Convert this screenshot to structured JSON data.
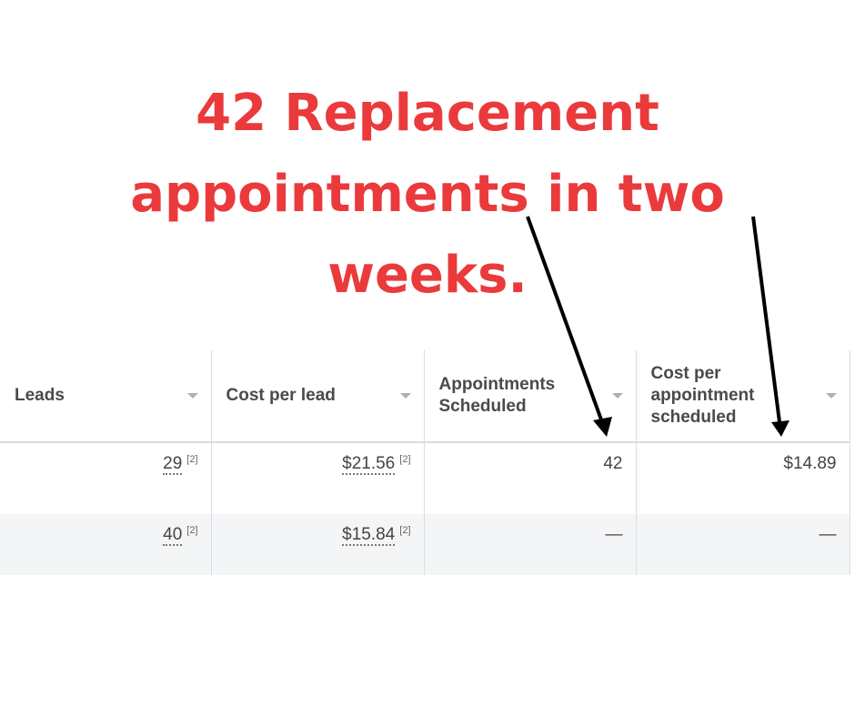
{
  "headline": {
    "lines": [
      "42 Replacement",
      "appointments in two",
      "weeks."
    ],
    "color": "#ea3a3c"
  },
  "table": {
    "columns": [
      {
        "label": "Leads",
        "sort_icon": "caret-down-icon"
      },
      {
        "label": "Cost per lead",
        "sort_icon": "caret-down-icon"
      },
      {
        "label": "Appointments Scheduled",
        "sort_icon": "caret-down-icon"
      },
      {
        "label": "Cost per appointment scheduled",
        "sort_icon": "caret-down-icon"
      }
    ],
    "rows": [
      {
        "leads": "29",
        "leads_note": "[2]",
        "cpl": "$21.56",
        "cpl_note": "[2]",
        "appts": "42",
        "cpa": "$14.89"
      },
      {
        "leads": "40",
        "leads_note": "[2]",
        "cpl": "$15.84",
        "cpl_note": "[2]",
        "appts": "—",
        "cpa": "—"
      }
    ]
  },
  "annotations": {
    "arrow_color": "#000000",
    "arrows": [
      "arrow-to-appointments-scheduled",
      "arrow-to-cost-per-appointment"
    ]
  }
}
